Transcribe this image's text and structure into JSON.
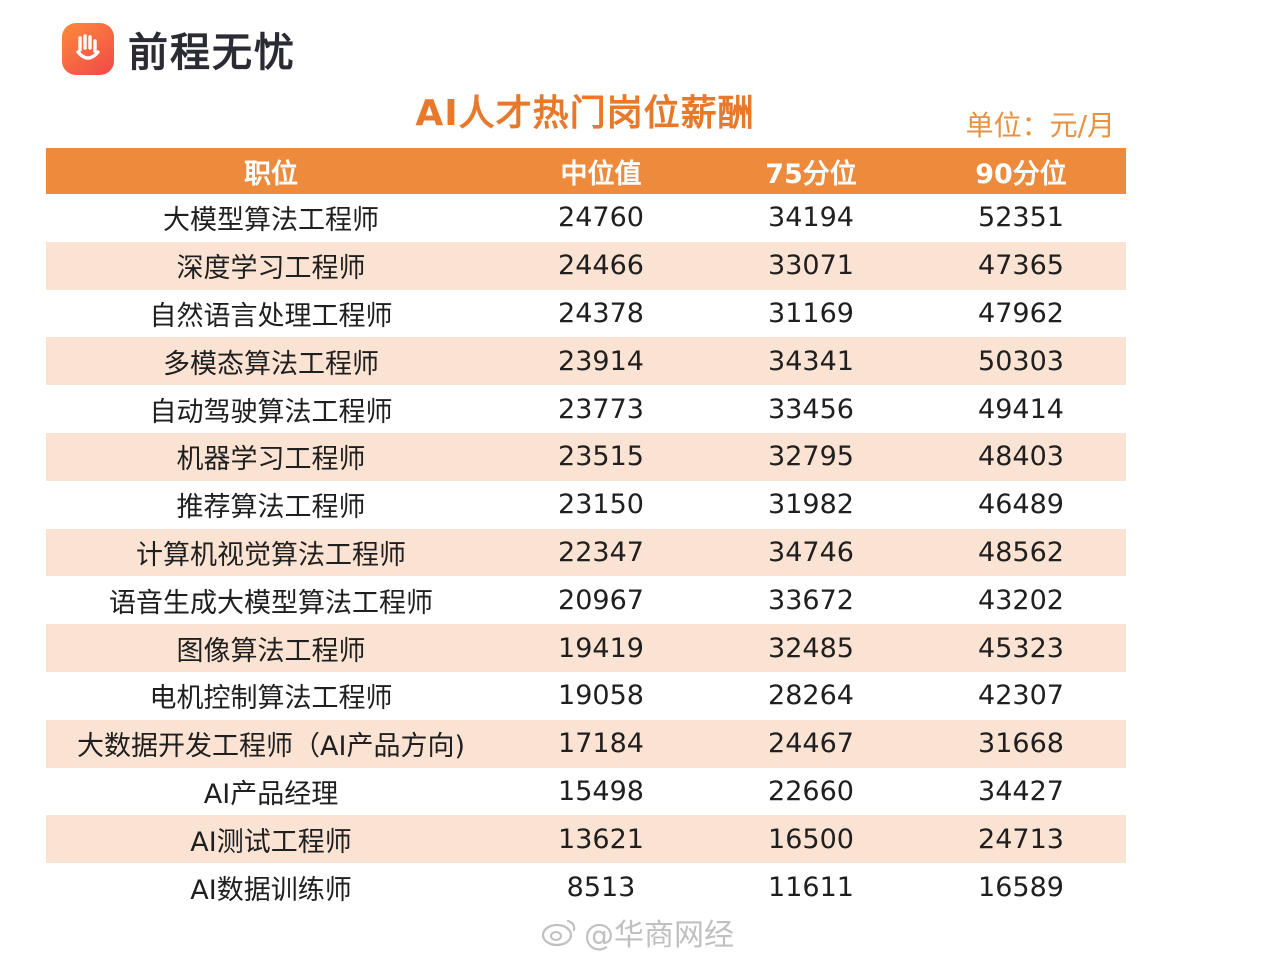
{
  "brand": {
    "name": "前程无忧",
    "logo_icon": "hand-smile-logo-icon"
  },
  "title": "AI人才热门岗位薪酬",
  "unit": "单位：元/月",
  "watermark": "@华商网经",
  "colors": {
    "header_bg": "#ee8a3c",
    "alt_row_bg": "#fbe3d3",
    "title": "#e8792b"
  },
  "chart_data": {
    "type": "table",
    "title": "AI人才热门岗位薪酬",
    "unit": "单位：元/月",
    "columns": [
      "职位",
      "中位值",
      "75分位",
      "90分位"
    ],
    "rows": [
      [
        "大模型算法工程师",
        24760,
        34194,
        52351
      ],
      [
        "深度学习工程师",
        24466,
        33071,
        47365
      ],
      [
        "自然语言处理工程师",
        24378,
        31169,
        47962
      ],
      [
        "多模态算法工程师",
        23914,
        34341,
        50303
      ],
      [
        "自动驾驶算法工程师",
        23773,
        33456,
        49414
      ],
      [
        "机器学习工程师",
        23515,
        32795,
        48403
      ],
      [
        "推荐算法工程师",
        23150,
        31982,
        46489
      ],
      [
        "计算机视觉算法工程师",
        22347,
        34746,
        48562
      ],
      [
        "语音生成大模型算法工程师",
        20967,
        33672,
        43202
      ],
      [
        "图像算法工程师",
        19419,
        32485,
        45323
      ],
      [
        "电机控制算法工程师",
        19058,
        28264,
        42307
      ],
      [
        "大数据开发工程师（AI产品方向)",
        17184,
        24467,
        31668
      ],
      [
        "AI产品经理",
        15498,
        22660,
        34427
      ],
      [
        "AI测试工程师",
        13621,
        16500,
        24713
      ],
      [
        "AI数据训练师",
        8513,
        11611,
        16589
      ]
    ]
  }
}
